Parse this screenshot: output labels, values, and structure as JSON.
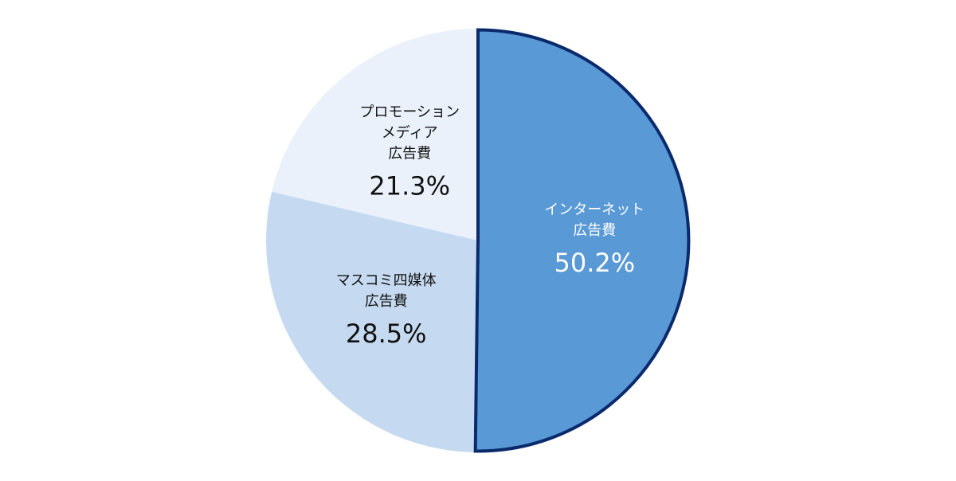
{
  "chart_data": {
    "type": "pie",
    "unit": "%",
    "start": "12 o'clock",
    "direction": "clockwise",
    "slices": [
      {
        "label": [
          "インターネット",
          "広告費"
        ],
        "value": 50.2,
        "value_label": "50.2%",
        "color": "#5899d6",
        "text_color": "#ffffff",
        "outline": "#0b2a6b",
        "highlighted": true
      },
      {
        "label": [
          "マスコミ四媒体",
          "広告費"
        ],
        "value": 28.5,
        "value_label": "28.5%",
        "color": "#c5daf0",
        "text_color": "#111111",
        "outline": null,
        "highlighted": false
      },
      {
        "label": [
          "プロモーション",
          "メディア",
          "広告費"
        ],
        "value": 21.3,
        "value_label": "21.3%",
        "color": "#eaf1fa",
        "text_color": "#111111",
        "outline": null,
        "highlighted": false
      }
    ]
  }
}
